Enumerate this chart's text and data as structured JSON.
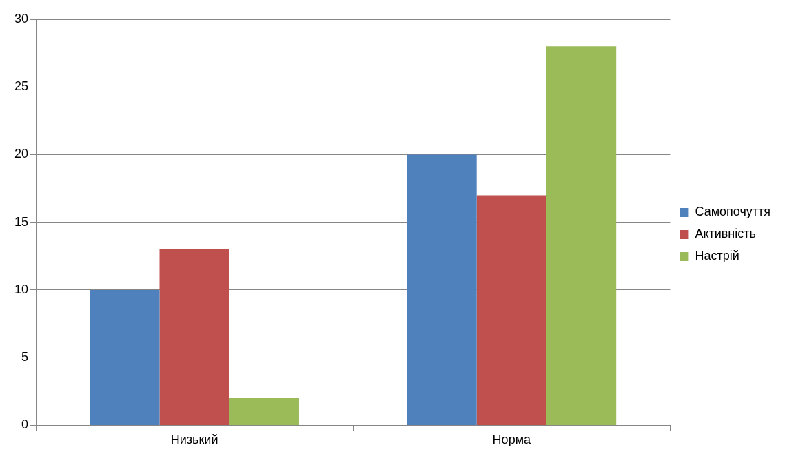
{
  "chart_data": {
    "type": "bar",
    "categories": [
      "Низький",
      "Норма"
    ],
    "series": [
      {
        "name": "Самопочуття",
        "color": "#4f81bd",
        "values": [
          10,
          20
        ]
      },
      {
        "name": "Активність",
        "color": "#c0504d",
        "values": [
          13,
          17
        ]
      },
      {
        "name": "Настрій",
        "color": "#9bbb59",
        "values": [
          2,
          28
        ]
      }
    ],
    "ylim": [
      0,
      30
    ],
    "yticks": [
      0,
      5,
      10,
      15,
      20,
      25,
      30
    ],
    "grid": "y",
    "legend": "right"
  }
}
